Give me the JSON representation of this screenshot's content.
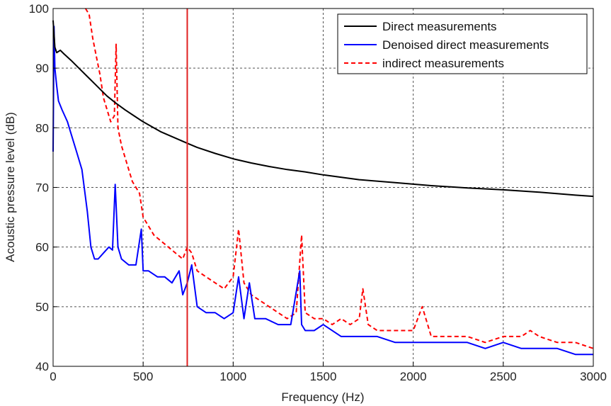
{
  "chart_data": {
    "type": "line",
    "xlabel": "Frequency (Hz)",
    "ylabel": "Acoustic pressure level (dB)",
    "xlim": [
      0,
      3000
    ],
    "ylim": [
      40,
      100
    ],
    "xticks": [
      0,
      500,
      1000,
      1500,
      2000,
      2500,
      3000
    ],
    "yticks": [
      40,
      50,
      60,
      70,
      80,
      90,
      100
    ],
    "xtick_labels": [
      "0",
      "500",
      "1000",
      "1500",
      "2000",
      "2500",
      "3000"
    ],
    "ytick_labels": [
      "40",
      "50",
      "60",
      "70",
      "80",
      "90",
      "100"
    ],
    "grid": true,
    "legend_position": "top-right",
    "vline": {
      "x": 745,
      "color": "#e02020"
    },
    "series": [
      {
        "name": "Direct measurements",
        "color": "#000000",
        "style": "solid",
        "x": [
          0,
          10,
          20,
          40,
          60,
          100,
          150,
          200,
          250,
          300,
          350,
          400,
          450,
          500,
          600,
          700,
          745,
          800,
          900,
          1000,
          1100,
          1200,
          1300,
          1400,
          1500,
          1700,
          1900,
          2100,
          2300,
          2500,
          2700,
          2900,
          3000
        ],
        "y": [
          98,
          93.5,
          92.6,
          93.0,
          92.4,
          91.3,
          89.8,
          88.3,
          86.8,
          85.3,
          84.1,
          83.0,
          82.0,
          81.0,
          79.3,
          78.0,
          77.4,
          76.7,
          75.7,
          74.8,
          74.1,
          73.5,
          73.0,
          72.6,
          72.1,
          71.3,
          70.8,
          70.3,
          69.9,
          69.6,
          69.2,
          68.7,
          68.5
        ]
      },
      {
        "name": "Denoised direct measurements",
        "color": "#0000ff",
        "style": "solid",
        "x": [
          0,
          5,
          10,
          20,
          30,
          50,
          80,
          100,
          130,
          160,
          190,
          210,
          230,
          250,
          280,
          310,
          330,
          345,
          360,
          380,
          420,
          460,
          490,
          500,
          530,
          580,
          620,
          660,
          700,
          720,
          745,
          770,
          800,
          850,
          900,
          950,
          1000,
          1030,
          1060,
          1090,
          1120,
          1180,
          1250,
          1320,
          1370,
          1380,
          1400,
          1450,
          1500,
          1600,
          1700,
          1800,
          1900,
          2000,
          2100,
          2200,
          2300,
          2400,
          2500,
          2600,
          2700,
          2800,
          2900,
          3000
        ],
        "y": [
          76,
          97,
          90,
          87,
          84.5,
          83,
          81,
          79,
          76,
          73,
          66,
          60,
          58,
          58,
          59,
          60,
          59.5,
          70.5,
          60,
          58,
          57,
          57,
          63,
          56,
          56,
          55,
          55,
          54,
          56,
          52,
          54,
          57,
          50,
          49,
          49,
          48,
          49,
          55,
          48,
          54,
          48,
          48,
          47,
          47,
          56,
          47,
          46,
          46,
          47,
          45,
          45,
          45,
          44,
          44,
          44,
          44,
          44,
          43,
          44,
          43,
          43,
          43,
          42,
          42
        ]
      },
      {
        "name": "indirect measurements",
        "color": "#ff0000",
        "style": "dashed",
        "x": [
          180,
          200,
          220,
          240,
          260,
          280,
          300,
          320,
          340,
          350,
          360,
          380,
          400,
          420,
          440,
          460,
          480,
          500,
          520,
          560,
          600,
          640,
          680,
          720,
          745,
          770,
          800,
          850,
          900,
          950,
          1000,
          1030,
          1060,
          1100,
          1150,
          1200,
          1250,
          1300,
          1350,
          1380,
          1400,
          1450,
          1500,
          1550,
          1600,
          1650,
          1700,
          1720,
          1750,
          1800,
          1900,
          2000,
          2050,
          2100,
          2200,
          2300,
          2400,
          2500,
          2600,
          2650,
          2700,
          2800,
          2900,
          3000
        ],
        "y": [
          100,
          99,
          95,
          92,
          89,
          85,
          83,
          81,
          82,
          94,
          80,
          77,
          75,
          73,
          71,
          70,
          69,
          65,
          64,
          62,
          61,
          60,
          59,
          58,
          60,
          59,
          56,
          55,
          54,
          53,
          55,
          63,
          54,
          52,
          51,
          50,
          49,
          48,
          49,
          62,
          49,
          48,
          48,
          47,
          48,
          47,
          48,
          53,
          47,
          46,
          46,
          46,
          50,
          45,
          45,
          45,
          44,
          45,
          45,
          46,
          45,
          44,
          44,
          43
        ]
      }
    ]
  }
}
